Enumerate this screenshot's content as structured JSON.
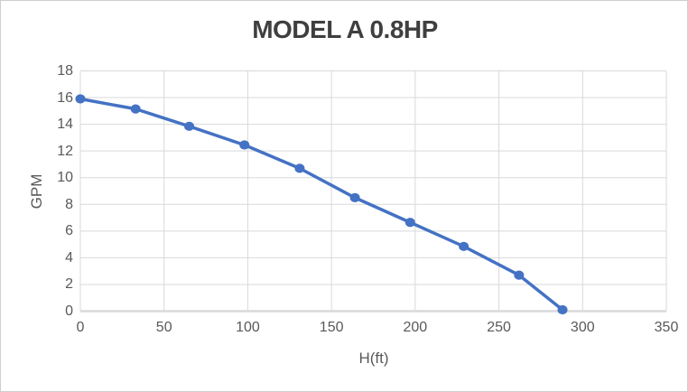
{
  "chart_data": {
    "type": "line",
    "title": "MODEL A 0.8HP",
    "xlabel": "H(ft)",
    "ylabel": "GPM",
    "x": [
      0,
      33,
      65,
      98,
      131,
      164,
      197,
      229,
      262,
      288
    ],
    "y": [
      15.9,
      15.15,
      13.85,
      12.45,
      10.7,
      8.5,
      6.65,
      4.85,
      2.7,
      0.1
    ],
    "series_name": "MODEL A 0.8HP",
    "xlim": [
      0,
      350
    ],
    "ylim": [
      0,
      18
    ],
    "x_ticks": [
      0,
      50,
      100,
      150,
      200,
      250,
      300,
      350
    ],
    "y_ticks": [
      0,
      2,
      4,
      6,
      8,
      10,
      12,
      14,
      16,
      18
    ],
    "grid": true,
    "legend": false,
    "marker": "circle",
    "colors": {
      "line": "#4472C4",
      "marker": "#4472C4",
      "gridline": "#D9D9D9",
      "axis_line": "#D9D9D9",
      "tick_label": "#595959",
      "title": "#3F3F3F",
      "axis_title": "#595959",
      "background": "#FFFFFF",
      "frame_border": "#CFCFCF"
    }
  }
}
